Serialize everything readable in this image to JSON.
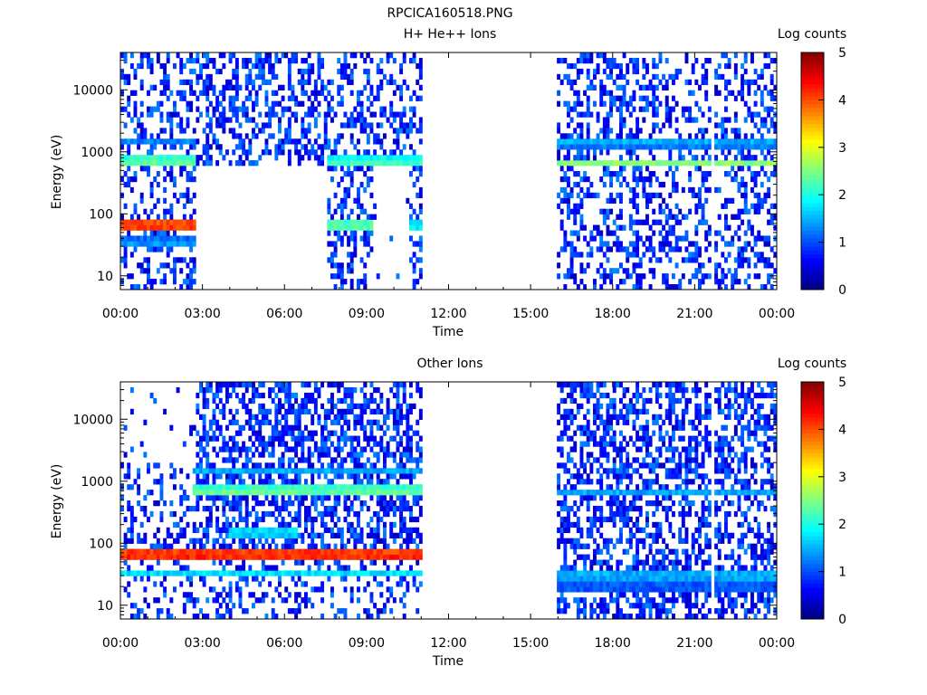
{
  "figure_title": "RPCICA160518.PNG",
  "chart_data": [
    {
      "type": "heatmap",
      "title": "H+ He++ Ions",
      "xlabel": "Time",
      "ylabel": "Energy (eV)",
      "x_tick_labels": [
        "00:00",
        "03:00",
        "06:00",
        "09:00",
        "12:00",
        "15:00",
        "18:00",
        "21:00",
        "00:00"
      ],
      "xlim_hours": [
        0,
        24
      ],
      "y_scale": "log",
      "y_tick_labels": [
        "10",
        "100",
        "1000",
        "10000"
      ],
      "ylim": [
        6,
        40000
      ],
      "colorbar": {
        "label": "Log counts",
        "range": [
          0,
          5
        ],
        "tick_labels": [
          "0",
          "1",
          "2",
          "3",
          "4",
          "5"
        ]
      },
      "data_coverage_hours": [
        [
          0,
          11
        ],
        [
          16,
          24
        ]
      ],
      "data_gap_hours": [
        [
          11,
          16
        ]
      ],
      "white_stripe_hour": 21.7,
      "features": [
        {
          "t0": 0.0,
          "t1": 2.8,
          "energy_eV": 65,
          "log_counts": 4.3
        },
        {
          "t0": 0.0,
          "t1": 2.8,
          "energy_eV": 35,
          "log_counts": 1.5
        },
        {
          "t0": 0.0,
          "t1": 2.8,
          "energy_eV": 700,
          "log_counts": 2.5
        },
        {
          "t0": 0.0,
          "t1": 2.8,
          "energy_eV": 1500,
          "log_counts": 1.3
        },
        {
          "t0": 7.6,
          "t1": 9.2,
          "energy_eV": 65,
          "log_counts": 2.5
        },
        {
          "t0": 7.6,
          "t1": 11.0,
          "energy_eV": 700,
          "log_counts": 2.3
        },
        {
          "t0": 10.6,
          "t1": 11.0,
          "energy_eV": 65,
          "log_counts": 2.0
        },
        {
          "t0": 16.0,
          "t1": 24.0,
          "energy_eV": 650,
          "log_counts": 2.6
        },
        {
          "t0": 16.0,
          "t1": 24.0,
          "energy_eV": 1400,
          "log_counts": 1.6
        }
      ]
    },
    {
      "type": "heatmap",
      "title": "Other Ions",
      "xlabel": "Time",
      "ylabel": "Energy (eV)",
      "x_tick_labels": [
        "00:00",
        "03:00",
        "06:00",
        "09:00",
        "12:00",
        "15:00",
        "18:00",
        "21:00",
        "00:00"
      ],
      "xlim_hours": [
        0,
        24
      ],
      "y_scale": "log",
      "y_tick_labels": [
        "10",
        "100",
        "1000",
        "10000"
      ],
      "ylim": [
        6,
        40000
      ],
      "colorbar": {
        "label": "Log counts",
        "range": [
          0,
          5
        ],
        "tick_labels": [
          "0",
          "1",
          "2",
          "3",
          "4",
          "5"
        ]
      },
      "data_coverage_hours": [
        [
          0,
          11
        ],
        [
          16,
          24
        ]
      ],
      "data_gap_hours": [
        [
          11,
          16
        ]
      ],
      "white_stripe_hour": 21.7,
      "features": [
        {
          "t0": 0.0,
          "t1": 11.0,
          "energy_eV": 65,
          "log_counts": 4.4
        },
        {
          "t0": 0.0,
          "t1": 11.0,
          "energy_eV": 32,
          "log_counts": 1.8
        },
        {
          "t0": 2.7,
          "t1": 11.0,
          "energy_eV": 700,
          "log_counts": 2.5
        },
        {
          "t0": 2.7,
          "t1": 11.0,
          "energy_eV": 1500,
          "log_counts": 1.5
        },
        {
          "t0": 4.0,
          "t1": 6.5,
          "energy_eV": 150,
          "log_counts": 1.9
        },
        {
          "t0": 16.0,
          "t1": 24.0,
          "energy_eV": 650,
          "log_counts": 1.5
        },
        {
          "t0": 16.0,
          "t1": 24.0,
          "energy_eV": 30,
          "log_counts": 1.7
        },
        {
          "t0": 16.0,
          "t1": 24.0,
          "energy_eV": 20,
          "log_counts": 1.3
        }
      ]
    }
  ]
}
